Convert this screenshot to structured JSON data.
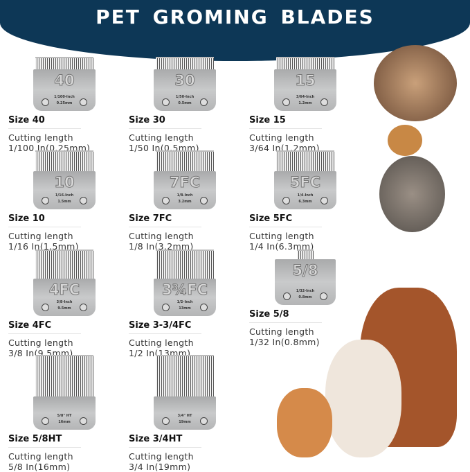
{
  "title": "PET GROMING BLADES",
  "cutting_label": "Cutting length",
  "blades": [
    {
      "blade_label": "40",
      "inch": "1/100-Inch",
      "mm": "0.25mm",
      "size": "Size 40",
      "length": "1/100 In(0.25mm)"
    },
    {
      "blade_label": "30",
      "inch": "1/50-Inch",
      "mm": "0.5mm",
      "size": "Size 30",
      "length": "1/50 In(0.5mm)"
    },
    {
      "blade_label": "15",
      "inch": "3/64-Inch",
      "mm": "1.2mm",
      "size": "Size 15",
      "length": "3/64 In(1.2mm)"
    },
    {
      "blade_label": "10",
      "inch": "1/16-Inch",
      "mm": "1.5mm",
      "size": "Size 10",
      "length": "1/16 In(1.5mm)"
    },
    {
      "blade_label": "7FC",
      "inch": "1/8-Inch",
      "mm": "3.2mm",
      "size": "Size 7FC",
      "length": "1/8 In(3.2mm)"
    },
    {
      "blade_label": "5FC",
      "inch": "1/4-Inch",
      "mm": "6.3mm",
      "size": "Size 5FC",
      "length": "1/4 In(6.3mm)"
    },
    {
      "blade_label": "4FC",
      "inch": "3/8-Inch",
      "mm": "9.5mm",
      "size": "Size 4FC",
      "length": "3/8 In(9.5mm)"
    },
    {
      "blade_label": "3¾FC",
      "inch": "1/2-Inch",
      "mm": "13mm",
      "size": "Size 3-3/4FC",
      "length": "1/2 In(13mm)"
    },
    {
      "blade_label": "5/8",
      "inch": "1/32-Inch",
      "mm": "0.8mm",
      "size": "Size 5/8",
      "length": "1/32 In(0.8mm)"
    },
    {
      "blade_label": "",
      "inch": "5/8\" HT",
      "mm": "16mm",
      "size": "Size 5/8HT",
      "length": "5/8 In(16mm)"
    },
    {
      "blade_label": "",
      "inch": "3/4\" HT",
      "mm": "19mm",
      "size": "Size 3/4HT",
      "length": "3/4 In(19mm)"
    }
  ]
}
